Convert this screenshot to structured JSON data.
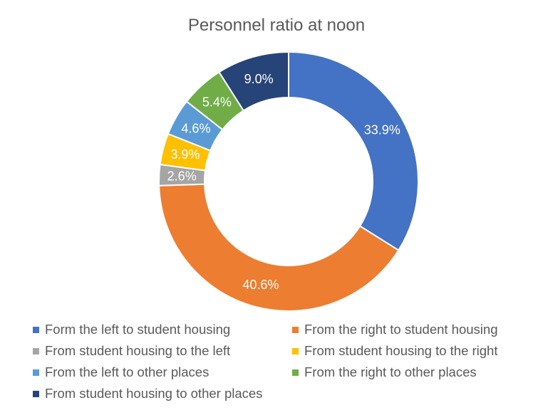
{
  "chart_data": {
    "type": "pie",
    "variant": "donut",
    "title": "Personnel ratio at noon",
    "legend_position": "bottom",
    "slices": [
      {
        "label": "Form the left to student housing",
        "value": 33.9,
        "display": "33.9%",
        "color": "#4472C4"
      },
      {
        "label": "From the right to student housing",
        "value": 40.6,
        "display": "40.6%",
        "color": "#ED7D31"
      },
      {
        "label": "From student housing to the left",
        "value": 2.6,
        "display": "2.6%",
        "color": "#A5A5A5"
      },
      {
        "label": "From student housing to the right",
        "value": 3.9,
        "display": "3.9%",
        "color": "#FFC000"
      },
      {
        "label": "From the left to other places",
        "value": 4.6,
        "display": "4.6%",
        "color": "#5B9BD5"
      },
      {
        "label": "From the right to other places",
        "value": 5.4,
        "display": "5.4%",
        "color": "#70AD47"
      },
      {
        "label": "From student housing to other places",
        "value": 9.0,
        "display": "9.0%",
        "color": "#264478"
      }
    ]
  }
}
